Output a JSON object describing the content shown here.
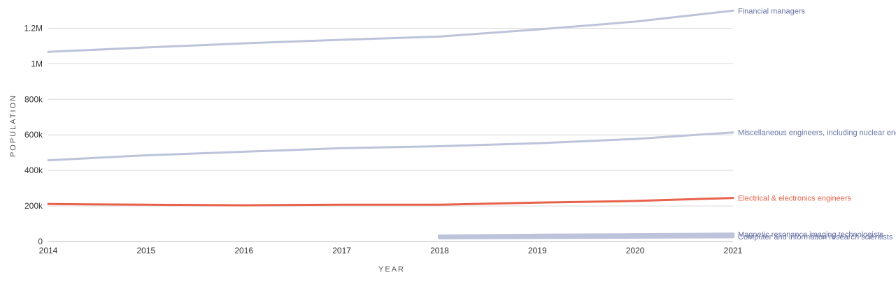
{
  "chart_data": {
    "type": "line",
    "xlabel": "YEAR",
    "ylabel": "POPULATION",
    "x": [
      2014,
      2015,
      2016,
      2017,
      2018,
      2019,
      2020,
      2021
    ],
    "x_tick_labels": [
      "2014",
      "2015",
      "2016",
      "2017",
      "2018",
      "2019",
      "2020",
      "2021"
    ],
    "ylim": [
      0,
      1300000
    ],
    "y_ticks": [
      0,
      200000,
      400000,
      600000,
      800000,
      1000000,
      1200000
    ],
    "y_tick_labels": [
      "0",
      "200k",
      "400k",
      "600k",
      "800k",
      "1M",
      "1.2M"
    ],
    "grid": true,
    "legend": "line-end labels",
    "series": [
      {
        "name": "Financial managers",
        "color": "#bcc3da",
        "label_color": "#6874a6",
        "x": [
          2014,
          2015,
          2016,
          2017,
          2018,
          2019,
          2020,
          2021
        ],
        "values": [
          1067000,
          1092000,
          1115000,
          1135000,
          1153000,
          1193000,
          1237000,
          1299000
        ]
      },
      {
        "name": "Miscellaneous engineers, including nuclear engineers",
        "color": "#bcc3da",
        "label_color": "#6874a6",
        "x": [
          2014,
          2015,
          2016,
          2017,
          2018,
          2019,
          2020,
          2021
        ],
        "values": [
          457000,
          485000,
          505000,
          525000,
          536000,
          553000,
          577000,
          614000
        ]
      },
      {
        "name": "Electrical & electronics engineers",
        "color": "#e8614a",
        "label_color": "#e8614a",
        "x": [
          2014,
          2015,
          2016,
          2017,
          2018,
          2019,
          2020,
          2021
        ],
        "values": [
          211000,
          207000,
          204000,
          207000,
          207000,
          219000,
          228000,
          245000
        ]
      },
      {
        "name": "Magnetic resonance imaging technologists",
        "color": "#bcc3da",
        "label_color": "#6874a6",
        "x": [
          2018,
          2019,
          2020,
          2021
        ],
        "values": [
          30000,
          34000,
          37000,
          41000
        ]
      },
      {
        "name": "Computer and information research scientists",
        "color": "#bcc3da",
        "label_color": "#6874a6",
        "x": [
          2018,
          2019,
          2020,
          2021
        ],
        "values": [
          22000,
          24000,
          26000,
          28000
        ]
      }
    ]
  }
}
